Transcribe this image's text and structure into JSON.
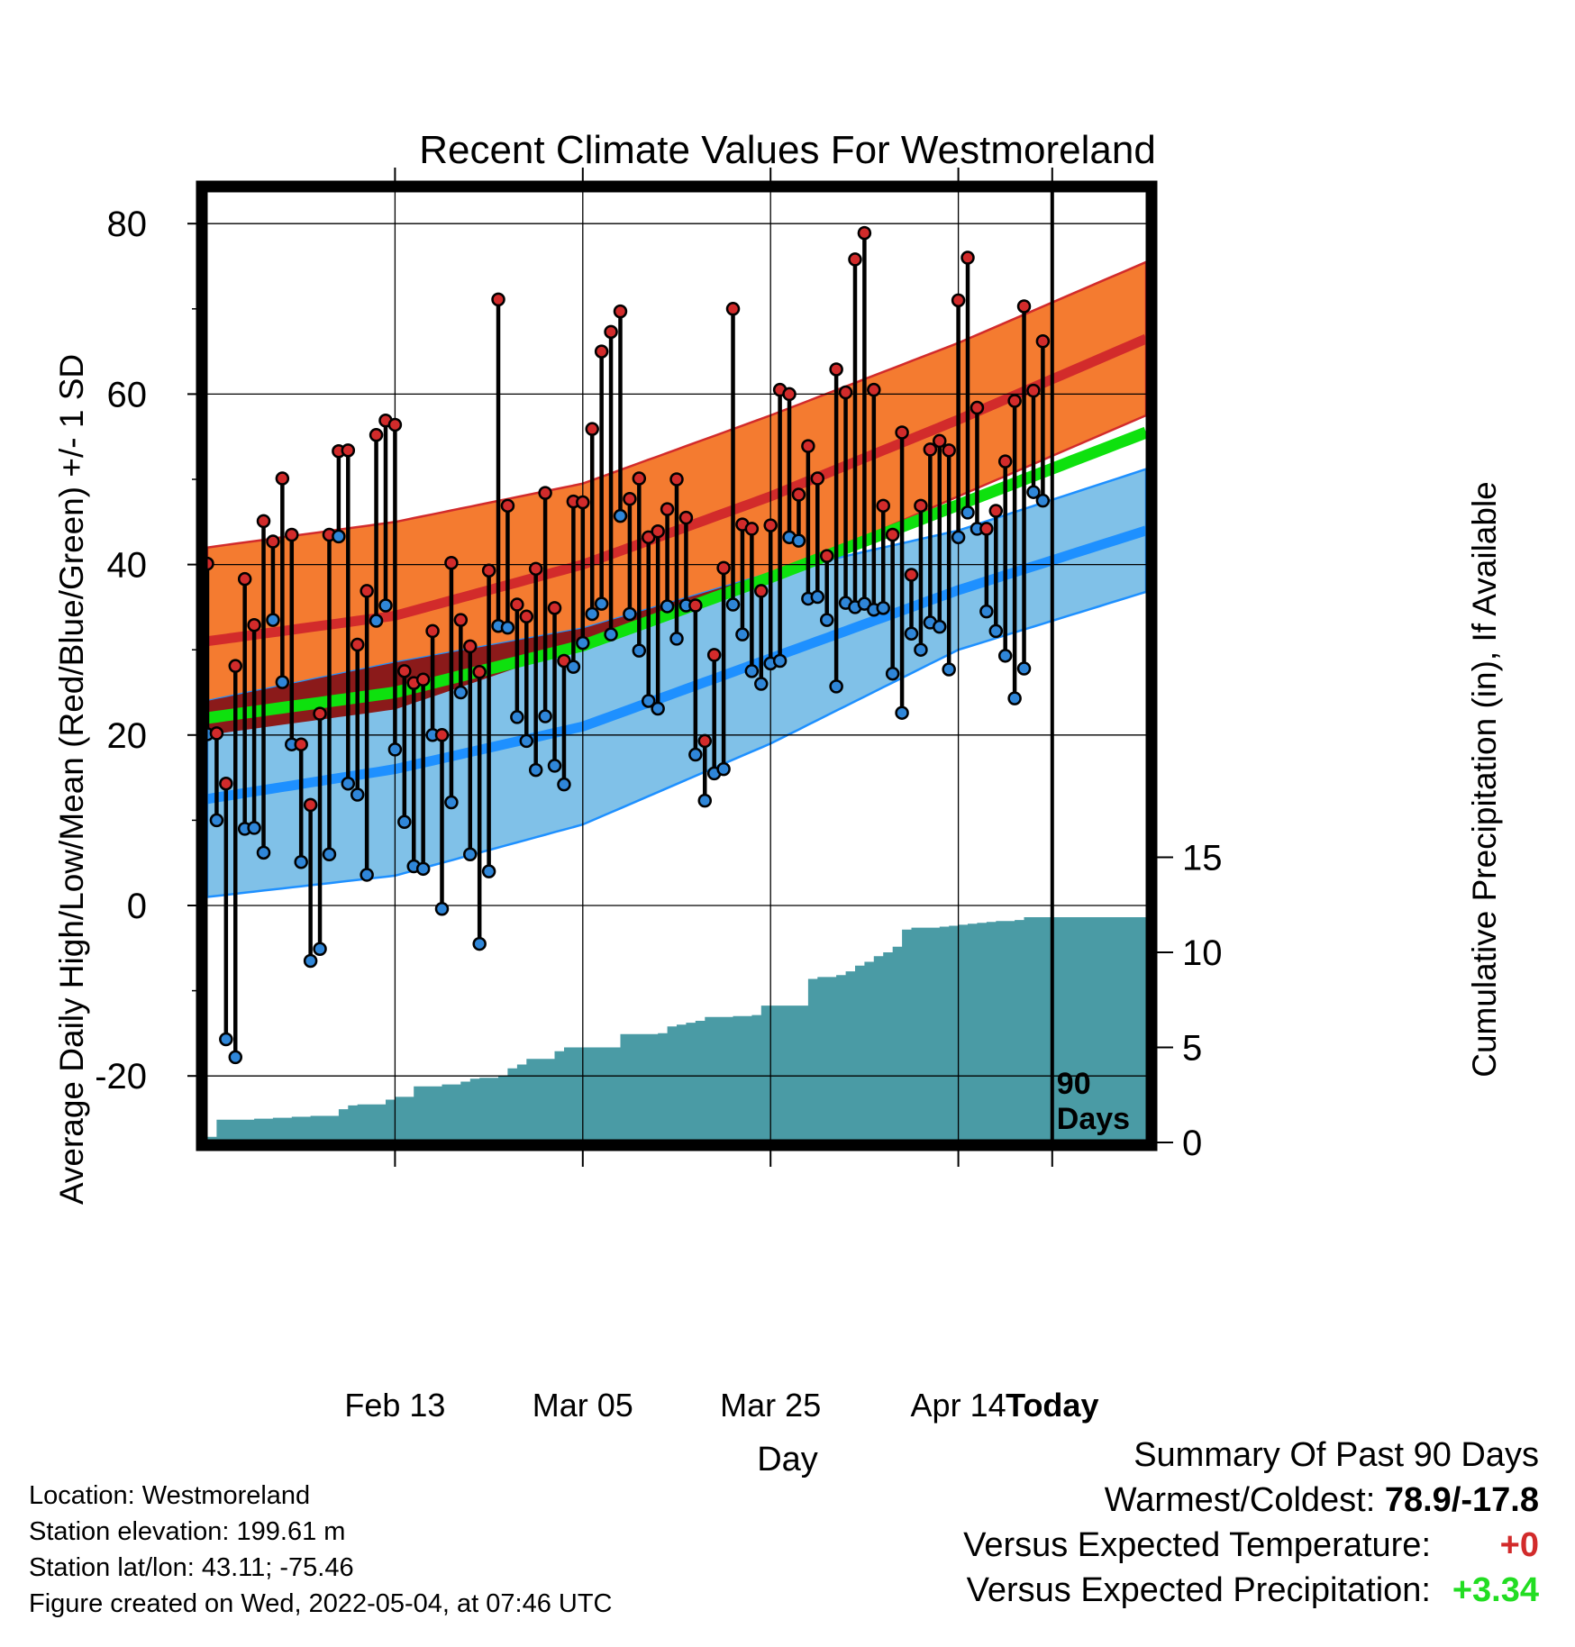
{
  "chart_data": {
    "type": "line",
    "title": "Recent Climate Values For Westmoreland",
    "xlabel": "Day",
    "ylabel": "Average Daily High/Low/Mean (Red/Blue/Green) +/- 1 SD",
    "y2label": "Cumulative Precipitation (in), If Available",
    "ylim": [
      -27,
      82
    ],
    "y2lim": [
      0,
      20
    ],
    "yticks": [
      "80",
      "60",
      "40",
      "20",
      "0",
      "-20"
    ],
    "y2ticks": [
      "15",
      "10",
      "5",
      "0"
    ],
    "xticks": [
      "Feb 13",
      "Mar 05",
      "Mar 25",
      "Apr 14",
      "Today"
    ],
    "today_annotation": [
      "90",
      "Days"
    ],
    "grid": true,
    "colors": {
      "high_band": "#f47b30",
      "high_line": "#d22b2b",
      "low_band": "#80c1e8",
      "low_line": "#1e90ff",
      "mean_line": "#0ee10e",
      "precip": "#4a9ba5",
      "high_marker": "#d22b2b",
      "low_marker": "#2f86d8"
    },
    "normals": {
      "days": [
        0,
        20,
        40,
        60,
        80,
        100
      ],
      "high_mean": [
        31,
        34,
        40,
        48,
        57,
        66.5
      ],
      "high_sd": [
        11,
        11,
        9.5,
        9.5,
        9,
        9
      ],
      "low_mean": [
        12.5,
        16,
        21,
        29,
        37,
        44
      ],
      "low_sd": [
        11.5,
        12.5,
        11.5,
        10,
        7,
        7.2
      ],
      "mean": [
        22,
        25,
        30.5,
        38.5,
        47,
        55.5
      ]
    },
    "days_shown": 101,
    "today_day": 90,
    "highs": [
      40.1,
      20.2,
      14.3,
      28.1,
      38.3,
      32.9,
      45.1,
      42.7,
      50.1,
      43.5,
      18.9,
      11.8,
      22.5,
      43.5,
      53.3,
      53.4,
      30.6,
      36.9,
      55.2,
      56.9,
      56.4,
      27.5,
      26.1,
      26.5,
      32.2,
      20.0,
      40.2,
      33.5,
      30.4,
      27.4,
      39.3,
      71.1,
      46.9,
      35.3,
      33.9,
      39.5,
      48.4,
      34.9,
      28.7,
      47.4,
      47.3,
      55.9,
      65.0,
      67.3,
      69.7,
      47.7,
      50.1,
      43.2,
      43.9,
      46.5,
      50.0,
      45.5,
      35.2,
      19.3,
      29.4,
      39.6,
      70.0,
      44.7,
      44.2,
      36.9,
      44.6,
      60.5,
      60.0,
      48.2,
      53.9,
      50.1,
      41.0,
      62.9,
      60.2,
      75.8,
      78.9,
      60.5,
      46.9,
      43.5,
      55.5,
      38.8,
      46.9,
      53.5,
      54.5,
      53.4,
      71.0,
      76.0,
      58.4,
      44.2,
      46.3,
      52.1,
      59.2,
      70.3,
      60.4,
      66.2
    ],
    "lows": [
      20.1,
      10.0,
      -15.7,
      -17.8,
      9.0,
      9.1,
      6.2,
      33.5,
      26.2,
      18.9,
      5.1,
      -6.5,
      -5.1,
      6.0,
      43.3,
      14.3,
      13.0,
      3.6,
      33.4,
      35.2,
      18.3,
      9.8,
      4.6,
      4.3,
      20.0,
      -0.4,
      12.1,
      25.0,
      6.0,
      -4.5,
      4.0,
      32.8,
      32.6,
      22.1,
      19.3,
      15.9,
      22.2,
      16.4,
      14.2,
      28.0,
      30.8,
      34.2,
      35.4,
      31.8,
      45.7,
      34.2,
      29.9,
      24.0,
      23.1,
      35.1,
      31.3,
      35.2,
      17.7,
      12.3,
      15.5,
      16.0,
      35.3,
      31.8,
      27.5,
      26.0,
      28.4,
      28.7,
      43.2,
      42.8,
      36.0,
      36.2,
      33.5,
      25.7,
      35.5,
      35.0,
      35.4,
      34.7,
      34.9,
      27.2,
      22.6,
      31.9,
      30.0,
      33.2,
      32.7,
      27.7,
      43.2,
      46.1,
      44.2,
      34.5,
      32.2,
      29.3,
      24.3,
      27.8,
      48.5,
      47.5
    ],
    "precip_cumulative": [
      0.3,
      1.2,
      1.2,
      1.2,
      1.2,
      1.25,
      1.25,
      1.3,
      1.3,
      1.35,
      1.35,
      1.4,
      1.4,
      1.4,
      1.75,
      1.95,
      2.0,
      2.0,
      2.0,
      2.25,
      2.4,
      2.4,
      2.95,
      2.95,
      2.95,
      3.05,
      3.05,
      3.2,
      3.35,
      3.4,
      3.4,
      3.5,
      3.9,
      4.1,
      4.4,
      4.4,
      4.4,
      4.8,
      5.0,
      5.0,
      5.0,
      5.0,
      5.0,
      5.0,
      5.7,
      5.7,
      5.7,
      5.7,
      5.75,
      6.1,
      6.2,
      6.3,
      6.4,
      6.6,
      6.6,
      6.6,
      6.65,
      6.65,
      6.7,
      7.2,
      7.2,
      7.2,
      7.2,
      7.2,
      8.6,
      8.7,
      8.7,
      8.8,
      9.0,
      9.3,
      9.5,
      9.8,
      10.0,
      10.3,
      11.2,
      11.3,
      11.3,
      11.3,
      11.35,
      11.4,
      11.45,
      11.5,
      11.55,
      11.6,
      11.65,
      11.65,
      11.7,
      11.85,
      11.85,
      11.85
    ]
  },
  "info": {
    "location": "Location: Westmoreland",
    "elevation": "Station elevation: 199.61 m",
    "latlon": "Station lat/lon: 43.11; -75.46",
    "created": "Figure created on Wed, 2022-05-04, at 07:46 UTC"
  },
  "summary": {
    "heading": "Summary Of Past 90 Days",
    "warmest_label": "Warmest/Coldest: ",
    "warmest_value": "78.9/-17.8",
    "temp_label": "Versus Expected Temperature:",
    "temp_value": "+0",
    "temp_color": "#d22b2b",
    "precip_label": "Versus Expected Precipitation:",
    "precip_value": "+3.34",
    "precip_color": "#22dd22"
  }
}
